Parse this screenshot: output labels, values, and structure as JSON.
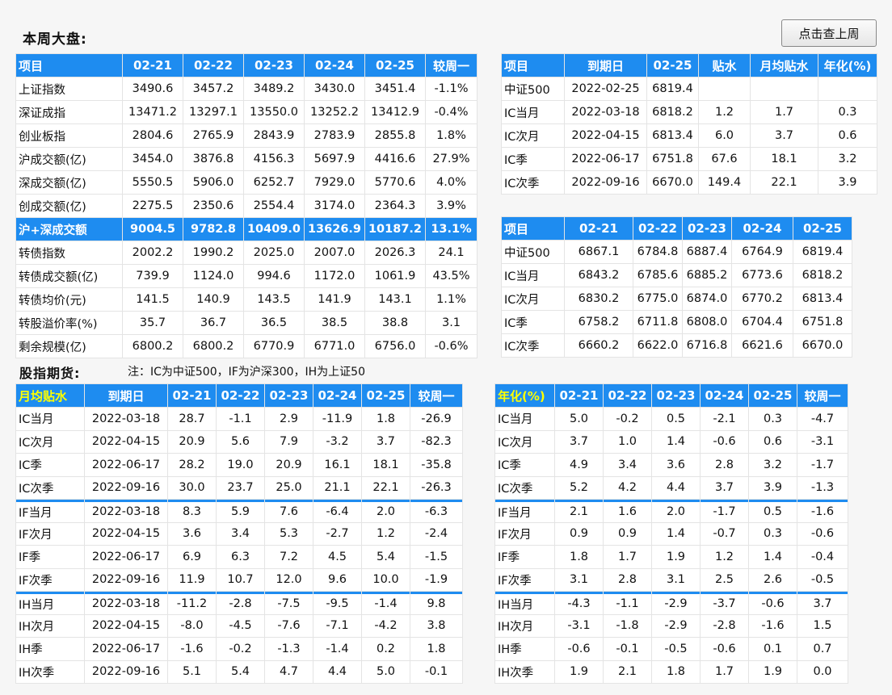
{
  "title": "本周大盘:",
  "prev_week_button": "点击查上周",
  "market": {
    "headers": [
      "项目",
      "02-21",
      "02-22",
      "02-23",
      "02-24",
      "02-25",
      "较周一"
    ],
    "rows": [
      [
        "上证指数",
        "3490.6",
        "3457.2",
        "3489.2",
        "3430.0",
        "3451.4",
        "-1.1%"
      ],
      [
        "深证成指",
        "13471.2",
        "13297.1",
        "13550.0",
        "13252.2",
        "13412.9",
        "-0.4%"
      ],
      [
        "创业板指",
        "2804.6",
        "2765.9",
        "2843.9",
        "2783.9",
        "2855.8",
        "1.8%"
      ],
      [
        "沪成交额(亿)",
        "3454.0",
        "3876.8",
        "4156.3",
        "5697.9",
        "4416.6",
        "27.9%"
      ],
      [
        "深成交额(亿)",
        "5550.5",
        "5906.0",
        "6252.7",
        "7929.0",
        "5770.6",
        "4.0%"
      ],
      [
        "创成交额(亿)",
        "2275.5",
        "2350.6",
        "2554.4",
        "3174.0",
        "2364.3",
        "3.9%"
      ],
      [
        "沪+深成交额",
        "9004.5",
        "9782.8",
        "10409.0",
        "13626.9",
        "10187.2",
        "13.1%"
      ],
      [
        "转债指数",
        "2002.2",
        "1990.2",
        "2025.0",
        "2007.0",
        "2026.3",
        "24.1"
      ],
      [
        "转债成交额(亿)",
        "739.9",
        "1124.0",
        "994.6",
        "1172.0",
        "1061.9",
        "43.5%"
      ],
      [
        "转债均价(元)",
        "141.5",
        "140.9",
        "143.5",
        "141.9",
        "143.1",
        "1.1%"
      ],
      [
        "转股溢价率(%)",
        "35.7",
        "36.7",
        "36.5",
        "38.5",
        "38.8",
        "3.1"
      ],
      [
        "剩余规模(亿)",
        "6800.2",
        "6800.2",
        "6770.9",
        "6771.0",
        "6756.0",
        "-0.6%"
      ]
    ]
  },
  "discount": {
    "headers": [
      "项目",
      "到期日",
      "02-25",
      "贴水",
      "月均贴水",
      "年化(%)"
    ],
    "rows": [
      [
        "中证500",
        "2022-02-25",
        "6819.4",
        "",
        "",
        ""
      ],
      [
        "IC当月",
        "2022-03-18",
        "6818.2",
        "1.2",
        "1.7",
        "0.3"
      ],
      [
        "IC次月",
        "2022-04-15",
        "6813.4",
        "6.0",
        "3.7",
        "0.6"
      ],
      [
        "IC季",
        "2022-06-17",
        "6751.8",
        "67.6",
        "18.1",
        "3.2"
      ],
      [
        "IC次季",
        "2022-09-16",
        "6670.0",
        "149.4",
        "22.1",
        "3.9"
      ]
    ]
  },
  "ic_prices": {
    "headers": [
      "项目",
      "02-21",
      "02-22",
      "02-23",
      "02-24",
      "02-25"
    ],
    "rows": [
      [
        "中证500",
        "6867.1",
        "6784.8",
        "6887.4",
        "6764.9",
        "6819.4"
      ],
      [
        "IC当月",
        "6843.2",
        "6785.6",
        "6885.2",
        "6773.6",
        "6818.2"
      ],
      [
        "IC次月",
        "6830.2",
        "6775.0",
        "6874.0",
        "6770.2",
        "6813.4"
      ],
      [
        "IC季",
        "6758.2",
        "6711.8",
        "6808.0",
        "6704.4",
        "6751.8"
      ],
      [
        "IC次季",
        "6660.2",
        "6622.0",
        "6716.8",
        "6621.6",
        "6670.0"
      ]
    ]
  },
  "futures_title": "股指期货:",
  "futures_note": "注：IC为中证500，IF为沪深300，IH为上证50",
  "monthly": {
    "headers": [
      "月均贴水",
      "到期日",
      "02-21",
      "02-22",
      "02-23",
      "02-24",
      "02-25",
      "较周一"
    ],
    "rows": [
      [
        "IC当月",
        "2022-03-18",
        "28.7",
        "-1.1",
        "2.9",
        "-11.9",
        "1.8",
        "-26.9"
      ],
      [
        "IC次月",
        "2022-04-15",
        "20.9",
        "5.6",
        "7.9",
        "-3.2",
        "3.7",
        "-82.3"
      ],
      [
        "IC季",
        "2022-06-17",
        "28.2",
        "19.0",
        "20.9",
        "16.1",
        "18.1",
        "-35.8"
      ],
      [
        "IC次季",
        "2022-09-16",
        "30.0",
        "23.7",
        "25.0",
        "21.1",
        "22.1",
        "-26.3"
      ],
      [
        "IF当月",
        "2022-03-18",
        "8.3",
        "5.9",
        "7.6",
        "-6.4",
        "2.0",
        "-6.3"
      ],
      [
        "IF次月",
        "2022-04-15",
        "3.6",
        "3.4",
        "5.3",
        "-2.7",
        "1.2",
        "-2.4"
      ],
      [
        "IF季",
        "2022-06-17",
        "6.9",
        "6.3",
        "7.2",
        "4.5",
        "5.4",
        "-1.5"
      ],
      [
        "IF次季",
        "2022-09-16",
        "11.9",
        "10.7",
        "12.0",
        "9.6",
        "10.0",
        "-1.9"
      ],
      [
        "IH当月",
        "2022-03-18",
        "-11.2",
        "-2.8",
        "-7.5",
        "-9.5",
        "-1.4",
        "9.8"
      ],
      [
        "IH次月",
        "2022-04-15",
        "-8.0",
        "-4.5",
        "-7.6",
        "-7.1",
        "-4.2",
        "3.8"
      ],
      [
        "IH季",
        "2022-06-17",
        "-1.6",
        "-0.2",
        "-1.3",
        "-1.4",
        "0.2",
        "1.8"
      ],
      [
        "IH次季",
        "2022-09-16",
        "5.1",
        "5.4",
        "4.7",
        "4.4",
        "5.0",
        "-0.1"
      ]
    ]
  },
  "annual": {
    "headers": [
      "年化(%)",
      "02-21",
      "02-22",
      "02-23",
      "02-24",
      "02-25",
      "较周一"
    ],
    "rows": [
      [
        "IC当月",
        "5.0",
        "-0.2",
        "0.5",
        "-2.1",
        "0.3",
        "-4.7"
      ],
      [
        "IC次月",
        "3.7",
        "1.0",
        "1.4",
        "-0.6",
        "0.6",
        "-3.1"
      ],
      [
        "IC季",
        "4.9",
        "3.4",
        "3.6",
        "2.8",
        "3.2",
        "-1.7"
      ],
      [
        "IC次季",
        "5.2",
        "4.2",
        "4.4",
        "3.7",
        "3.9",
        "-1.3"
      ],
      [
        "IF当月",
        "2.1",
        "1.6",
        "2.0",
        "-1.7",
        "0.5",
        "-1.6"
      ],
      [
        "IF次月",
        "0.9",
        "0.9",
        "1.4",
        "-0.7",
        "0.3",
        "-0.6"
      ],
      [
        "IF季",
        "1.8",
        "1.7",
        "1.9",
        "1.2",
        "1.4",
        "-0.4"
      ],
      [
        "IF次季",
        "3.1",
        "2.8",
        "3.1",
        "2.5",
        "2.6",
        "-0.5"
      ],
      [
        "IH当月",
        "-4.3",
        "-1.1",
        "-2.9",
        "-3.7",
        "-0.6",
        "3.7"
      ],
      [
        "IH次月",
        "-3.1",
        "-1.8",
        "-2.9",
        "-2.8",
        "-1.6",
        "1.5"
      ],
      [
        "IH季",
        "-0.6",
        "-0.1",
        "-0.5",
        "-0.6",
        "0.1",
        "0.7"
      ],
      [
        "IH次季",
        "1.9",
        "2.1",
        "1.8",
        "1.7",
        "1.9",
        "0.0"
      ]
    ]
  }
}
